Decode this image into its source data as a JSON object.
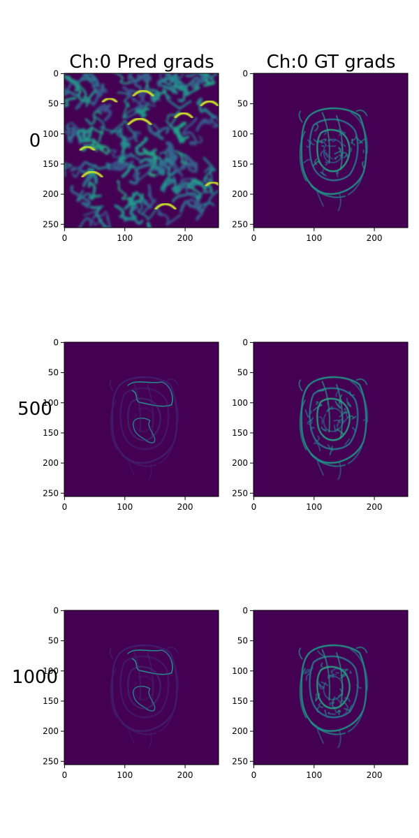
{
  "chart_data": {
    "type": "heatmap",
    "colormap": "viridis",
    "background_value": 0,
    "column_titles": [
      "Ch:0 Pred grads",
      "Ch:0 GT grads"
    ],
    "row_labels": [
      "0",
      "500",
      "1000"
    ],
    "x_ticks": [
      0,
      100,
      200
    ],
    "y_ticks": [
      0,
      50,
      100,
      150,
      200,
      250
    ],
    "xlim": [
      0,
      256
    ],
    "ylim": [
      256,
      0
    ],
    "panels": [
      {
        "row": "0",
        "column": "Ch:0 Pred grads",
        "content": "dense noise-like gradient field across the whole image",
        "max_value": 1.0
      },
      {
        "row": "0",
        "column": "Ch:0 GT grads",
        "content": "rose edge gradients",
        "max_value": 0.7
      },
      {
        "row": "500",
        "column": "Ch:0 Pred grads",
        "content": "sparse rose edge gradients",
        "max_value": 0.6
      },
      {
        "row": "500",
        "column": "Ch:0 GT grads",
        "content": "rose edge gradients",
        "max_value": 0.7
      },
      {
        "row": "1000",
        "column": "Ch:0 Pred grads",
        "content": "sparse rose edge gradients",
        "max_value": 0.6
      },
      {
        "row": "1000",
        "column": "Ch:0 GT grads",
        "content": "rose edge gradients",
        "max_value": 0.7
      }
    ]
  }
}
